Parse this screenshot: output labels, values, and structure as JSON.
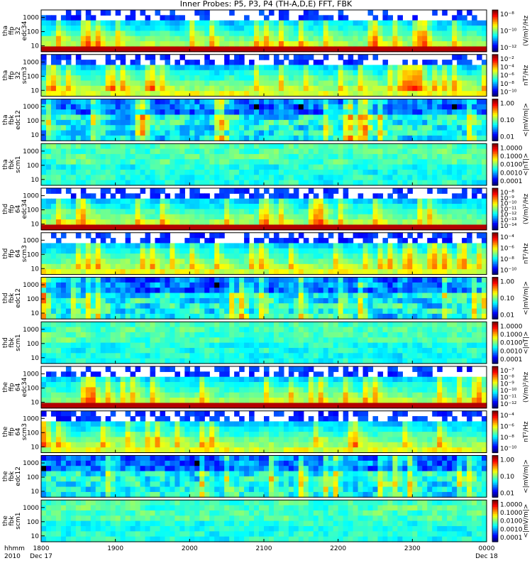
{
  "title": "Inner Probes: P5, P3, P4 (TH-A,D,E) FFT, FBK",
  "time_axis": {
    "row_label_1": "hhmm",
    "row_label_2": "2010",
    "ticks": [
      {
        "t": 0,
        "label": "1800",
        "sub": "Dec 17"
      },
      {
        "t": 60,
        "label": "1900",
        "sub": ""
      },
      {
        "t": 120,
        "label": "2000",
        "sub": ""
      },
      {
        "t": 180,
        "label": "2100",
        "sub": ""
      },
      {
        "t": 240,
        "label": "2200",
        "sub": ""
      },
      {
        "t": 300,
        "label": "2300",
        "sub": ""
      },
      {
        "t": 360,
        "label": "0000",
        "sub": "Dec 18"
      }
    ]
  },
  "chart_data": {
    "type": "heatmap",
    "x_range_minutes": [
      0,
      360
    ],
    "panels": [
      {
        "name": [
          "tha",
          "ffp",
          "32",
          "edc34"
        ],
        "y_ticks": [
          "1000",
          "100",
          "10"
        ],
        "cbar_label": "(V/m)²/Hz",
        "cbar_ticks": [
          "10⁻⁸",
          "10⁻¹⁰",
          "10⁻¹²"
        ],
        "style": "ffp-e"
      },
      {
        "name": [
          "tha",
          "ffp",
          "32",
          "scm3"
        ],
        "y_ticks": [
          "1000",
          "100",
          "10"
        ],
        "cbar_label": "nT²/Hz",
        "cbar_ticks": [
          "10⁻²",
          "10⁻⁴",
          "10⁻⁶",
          "10⁻⁸",
          "10⁻¹⁰"
        ],
        "style": "ffp-b"
      },
      {
        "name": [
          "tha",
          "fbk",
          "edc12"
        ],
        "y_ticks": [
          "1000",
          "100",
          "10"
        ],
        "cbar_label": "<|mV/m|>",
        "cbar_ticks": [
          "1.00",
          "0.10",
          "0.01"
        ],
        "style": "fbk-e"
      },
      {
        "name": [
          "tha",
          "fbk",
          "scm1"
        ],
        "y_ticks": [
          "1000",
          "100",
          "10"
        ],
        "cbar_label": "<|nT|>",
        "cbar_ticks": [
          "1.0000",
          "0.1000",
          "0.0100",
          "0.0010",
          "0.0001"
        ],
        "style": "fbk-b"
      },
      {
        "name": [
          "thd",
          "ffp",
          "64",
          "edc34"
        ],
        "y_ticks": [
          "1000",
          "100",
          "10"
        ],
        "cbar_label": "(V/m)²/Hz",
        "cbar_ticks": [
          "10⁻⁸",
          "10⁻⁹",
          "10⁻¹⁰",
          "10⁻¹¹",
          "10⁻¹²",
          "10⁻¹³",
          "10⁻¹⁴"
        ],
        "style": "ffp-e"
      },
      {
        "name": [
          "thd",
          "ffp",
          "64",
          "scm3"
        ],
        "y_ticks": [
          "1000",
          "100",
          "10"
        ],
        "cbar_label": "nT²/Hz",
        "cbar_ticks": [
          "10⁻⁴",
          "10⁻⁶",
          "10⁻⁸",
          "10⁻¹⁰"
        ],
        "style": "ffp-b"
      },
      {
        "name": [
          "thd",
          "fbk",
          "edc12"
        ],
        "y_ticks": [
          "1000",
          "100",
          "10"
        ],
        "cbar_label": "<|mV/m|>",
        "cbar_ticks": [
          "1.00",
          "0.10",
          "0.01"
        ],
        "style": "fbk-e"
      },
      {
        "name": [
          "thd",
          "fbk",
          "scm1"
        ],
        "y_ticks": [
          "1000",
          "100",
          "10"
        ],
        "cbar_label": "<|nT|>",
        "cbar_ticks": [
          "1.0000",
          "0.1000",
          "0.0100",
          "0.0010",
          "0.0001"
        ],
        "style": "fbk-b"
      },
      {
        "name": [
          "the",
          "ffp",
          "64",
          "edc34"
        ],
        "y_ticks": [
          "1000",
          "100",
          "10"
        ],
        "cbar_label": "(V/m)²/Hz",
        "cbar_ticks": [
          "10⁻⁷",
          "10⁻⁸",
          "10⁻⁹",
          "10⁻¹⁰",
          "10⁻¹¹",
          "10⁻¹²"
        ],
        "style": "ffp-e"
      },
      {
        "name": [
          "the",
          "ffp",
          "64",
          "scm3"
        ],
        "y_ticks": [
          "1000",
          "100",
          "10"
        ],
        "cbar_label": "nT²/Hz",
        "cbar_ticks": [
          "10⁻⁴",
          "10⁻⁶",
          "10⁻⁸",
          "10⁻¹⁰"
        ],
        "style": "ffp-b"
      },
      {
        "name": [
          "the",
          "fbk",
          "edc12"
        ],
        "y_ticks": [
          "1000",
          "100",
          "10"
        ],
        "cbar_label": "<|mV/m|>",
        "cbar_ticks": [
          "1.00",
          "0.10",
          "0.01"
        ],
        "style": "fbk-e"
      },
      {
        "name": [
          "the",
          "fbk",
          "scm1"
        ],
        "y_ticks": [
          "1000",
          "100",
          "10"
        ],
        "cbar_label": "<|mV/m|>",
        "cbar_ticks": [
          "1.0000",
          "0.1000",
          "0.0100",
          "0.0010",
          "0.0001"
        ],
        "style": "fbk-b"
      }
    ]
  }
}
